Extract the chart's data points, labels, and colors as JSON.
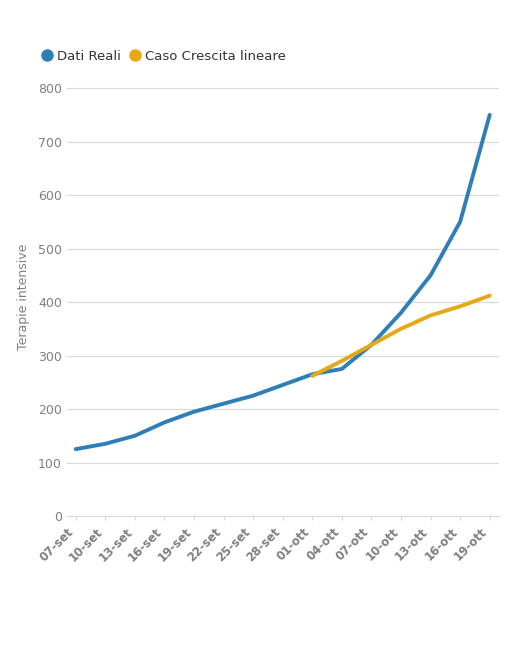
{
  "title": "",
  "ylabel": "Terapie intensive",
  "background_color": "#ffffff",
  "grid_color": "#d9d9d9",
  "tick_label_color": "#808080",
  "axis_label_color": "#808080",
  "real_color": "#2e7fb8",
  "linear_color": "#e6a817",
  "real_linewidth": 2.8,
  "linear_linewidth": 2.8,
  "legend_labels": [
    "Dati Reali",
    "Caso Crescita lineare"
  ],
  "legend_marker_color_real": "#2e7fb8",
  "legend_marker_color_linear": "#e6a817",
  "x_labels": [
    "07-set",
    "10-set",
    "13-set",
    "16-set",
    "19-set",
    "22-set",
    "25-set",
    "28-set",
    "01-ott",
    "04-ott",
    "07-ott",
    "10-ott",
    "13-ott",
    "16-ott",
    "19-ott"
  ],
  "real_x": [
    0,
    1,
    2,
    3,
    4,
    5,
    6,
    7,
    8,
    9,
    10,
    11,
    12,
    13,
    14
  ],
  "real_y": [
    125,
    135,
    150,
    175,
    195,
    210,
    225,
    245,
    265,
    275,
    320,
    380,
    450,
    550,
    750
  ],
  "linear_x": [
    8,
    9,
    10,
    11,
    12,
    13,
    14
  ],
  "linear_y": [
    262,
    290,
    320,
    350,
    375,
    392,
    412
  ],
  "ylim": [
    0,
    820
  ],
  "yticks": [
    0,
    100,
    200,
    300,
    400,
    500,
    600,
    700,
    800
  ]
}
